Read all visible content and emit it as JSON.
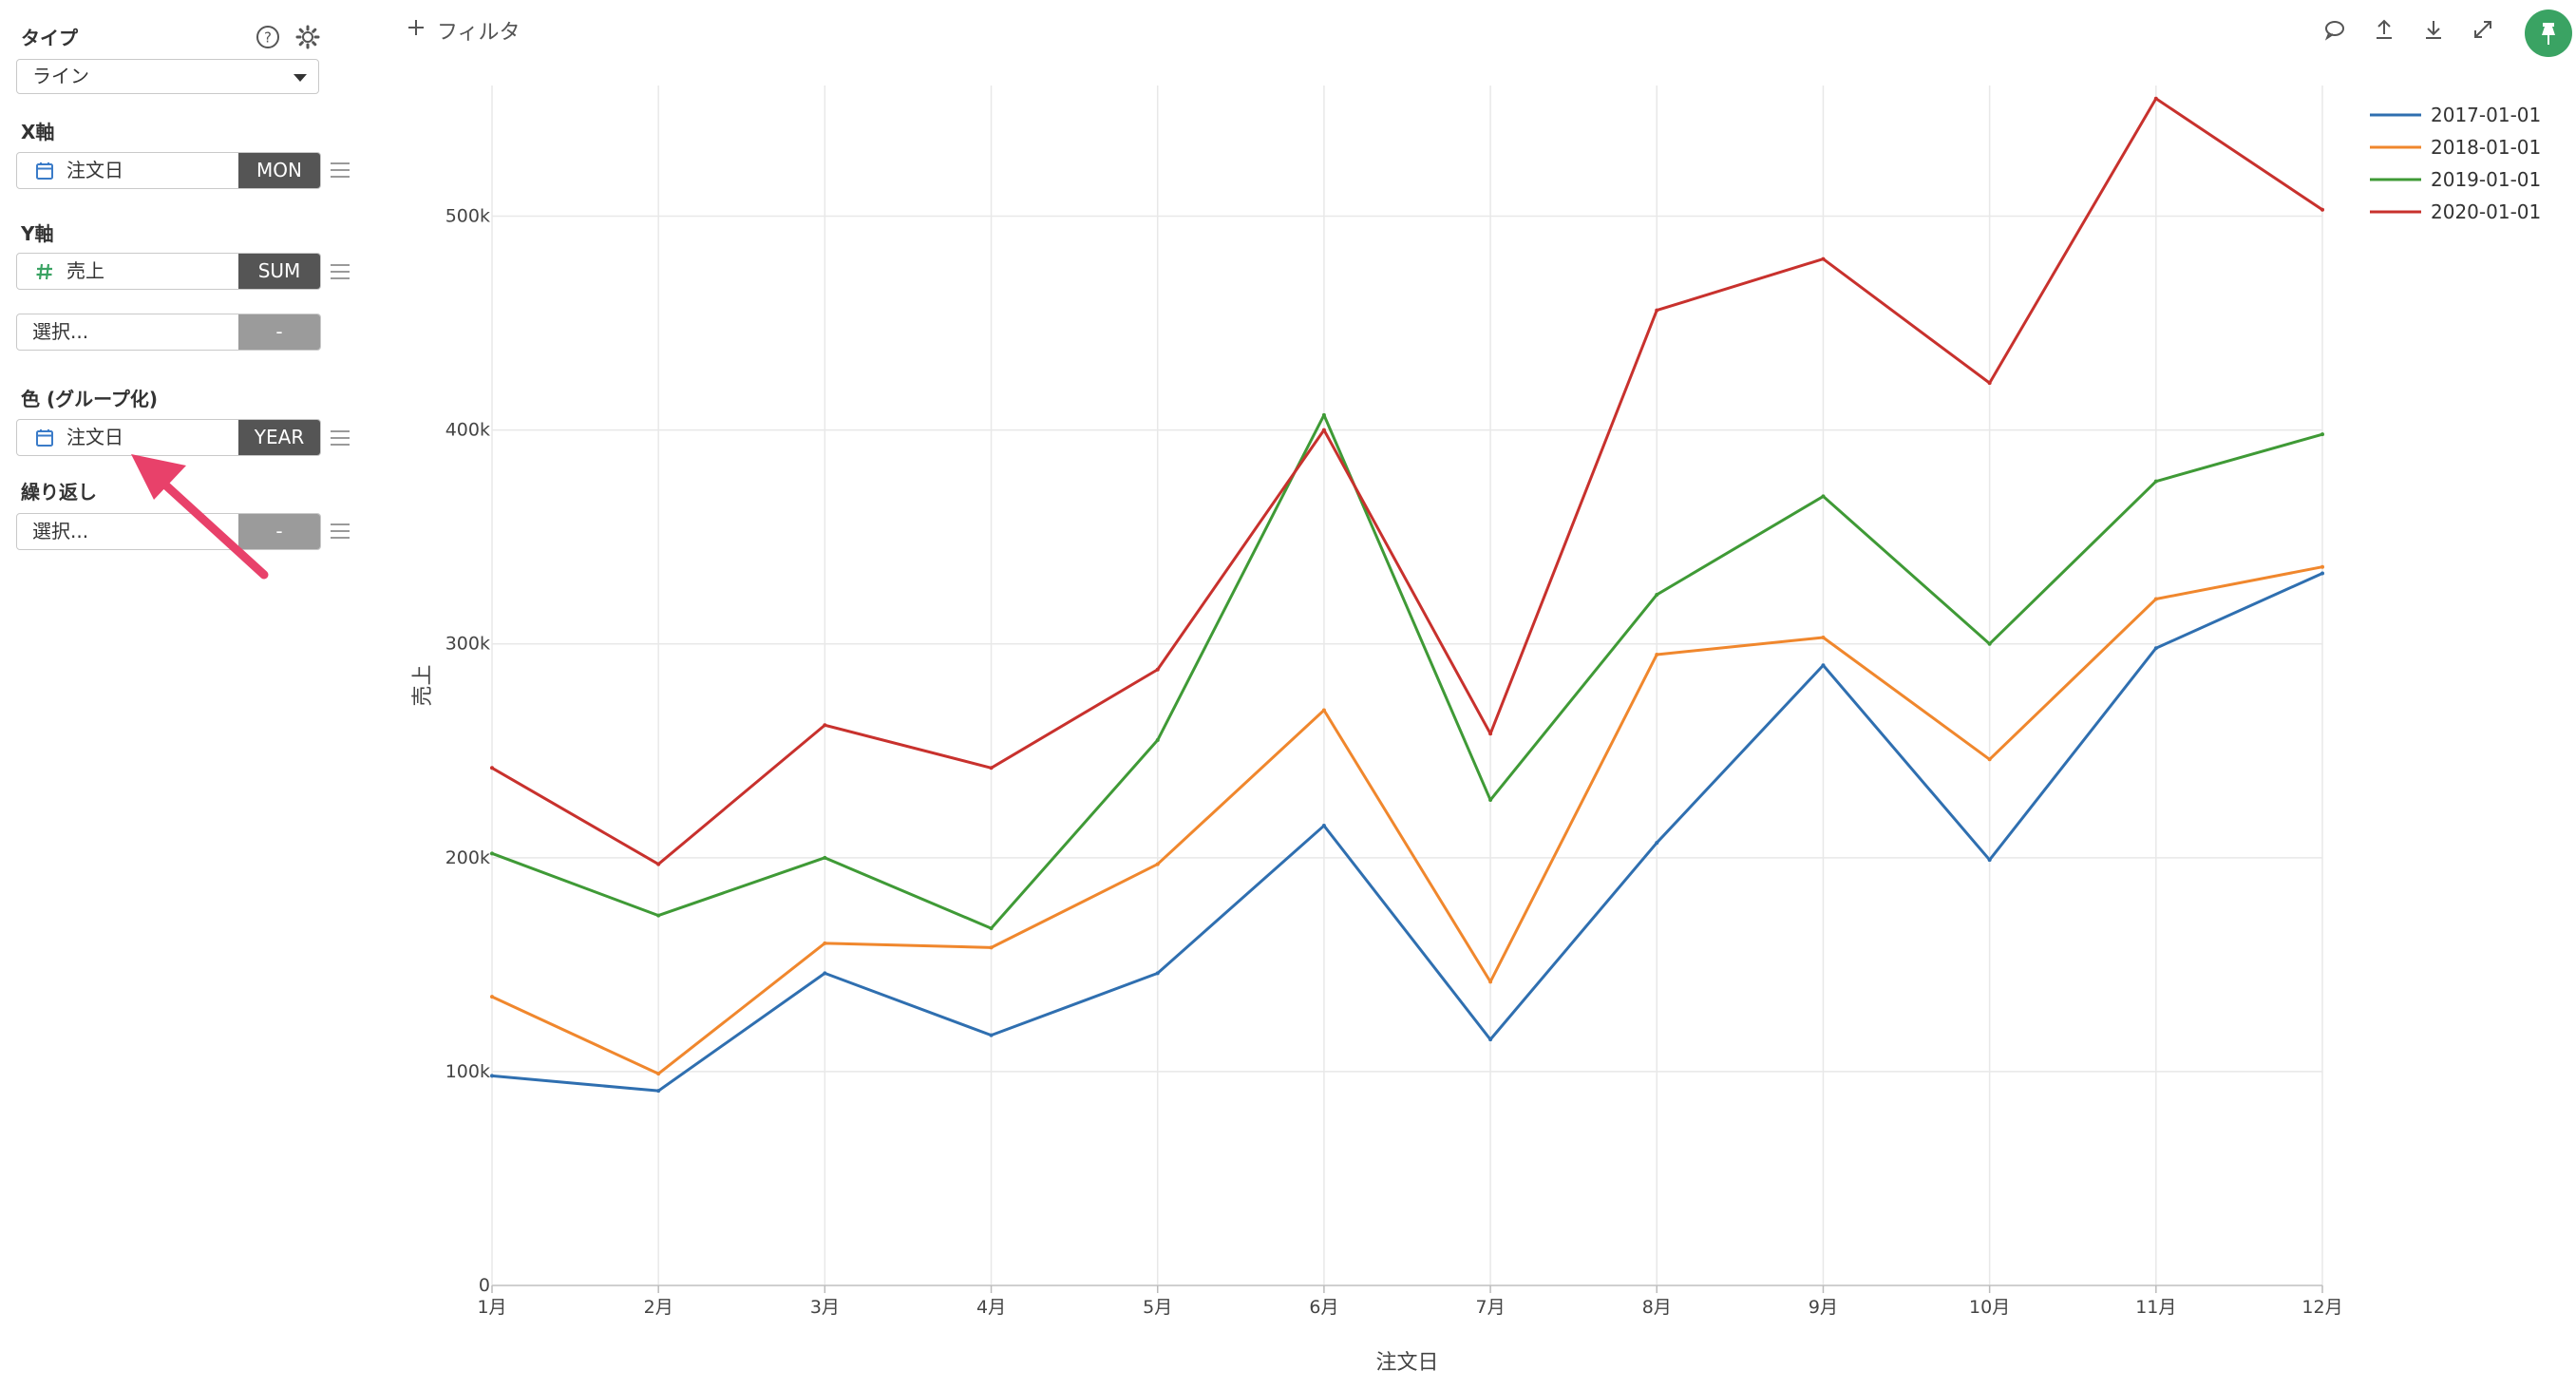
{
  "panel": {
    "type_label": "タイプ",
    "type_value": "ライン",
    "x_label": "X軸",
    "x_field": "注文日",
    "x_agg": "MON",
    "y_label": "Y軸",
    "y_field": "売上",
    "y_agg": "SUM",
    "y2_placeholder": "選択...",
    "y2_agg": "-",
    "color_label": "色 (グループ化)",
    "color_field": "注文日",
    "color_agg": "YEAR",
    "repeat_label": "繰り返し",
    "repeat_placeholder": "選択...",
    "repeat_agg": "-",
    "date_icon_color": "#3a7bc8",
    "number_icon_color": "#3aa363",
    "arrow_color": "#e8416a"
  },
  "toolbar": {
    "filter_label": "フィルタ",
    "icons": [
      "comment-icon",
      "upload-icon",
      "download-icon",
      "expand-icon",
      "pin-icon"
    ],
    "pin_color": "#3aa363"
  },
  "chart_data": {
    "type": "line",
    "xlabel": "注文日",
    "ylabel": "売上",
    "categories": [
      "1月",
      "2月",
      "3月",
      "4月",
      "5月",
      "6月",
      "7月",
      "8月",
      "9月",
      "10月",
      "11月",
      "12月"
    ],
    "ylim": [
      0,
      570000
    ],
    "yticks": [
      0,
      100000,
      200000,
      300000,
      400000,
      500000
    ],
    "ytick_labels": [
      "0",
      "100k",
      "200k",
      "300k",
      "400k",
      "500k"
    ],
    "grid": true,
    "legend_position": "top-right",
    "series": [
      {
        "name": "2017-01-01",
        "color": "#2f6fb0",
        "values": [
          98000,
          91000,
          146000,
          117000,
          146000,
          215000,
          115000,
          207000,
          290000,
          199000,
          298000,
          333000
        ]
      },
      {
        "name": "2018-01-01",
        "color": "#f0872d",
        "values": [
          135000,
          99000,
          160000,
          158000,
          197000,
          269000,
          142000,
          295000,
          303000,
          246000,
          321000,
          336000
        ]
      },
      {
        "name": "2019-01-01",
        "color": "#3f9a36",
        "values": [
          202000,
          173000,
          200000,
          167000,
          255000,
          407000,
          227000,
          323000,
          369000,
          300000,
          376000,
          398000
        ]
      },
      {
        "name": "2020-01-01",
        "color": "#c8312d",
        "values": [
          242000,
          197000,
          262000,
          242000,
          288000,
          400000,
          258000,
          456000,
          480000,
          422000,
          555000,
          503000
        ]
      }
    ]
  }
}
